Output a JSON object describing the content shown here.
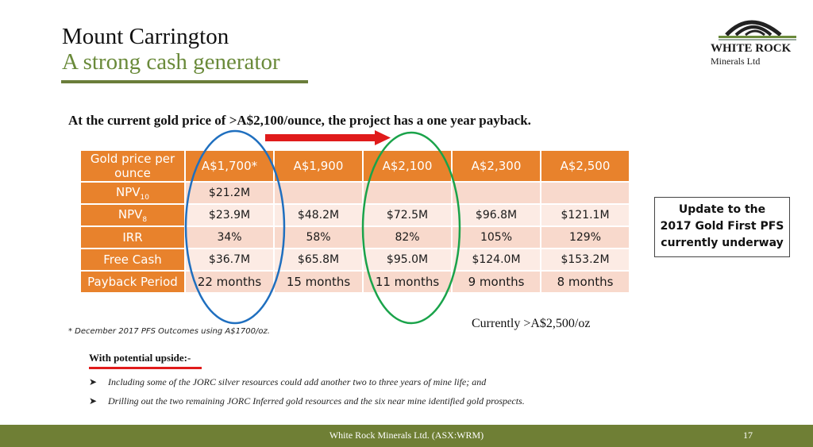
{
  "slide": {
    "title": "Mount Carrington",
    "subtitle": "A strong cash generator",
    "headline": "At the current gold price of >A$2,100/ounce, the project has a one year payback.",
    "footnote": "*  December 2017 PFS Outcomes using A$1700/oz.",
    "currently": "Currently >A$2,500/oz",
    "update_lines": [
      "Update to the",
      "2017 Gold First PFS",
      "currently underway"
    ]
  },
  "logo": {
    "name": "WHITE ROCK",
    "sub": "Minerals Ltd"
  },
  "table": {
    "corner": "Gold price per ounce",
    "columns": [
      "A$1,700*",
      "A$1,900",
      "A$2,100",
      "A$2,300",
      "A$2,500"
    ],
    "rows": [
      {
        "label": "NPV",
        "sub": "10",
        "values": [
          "$21.2M",
          "",
          "",
          "",
          ""
        ]
      },
      {
        "label": "NPV",
        "sub": "8",
        "values": [
          "$23.9M",
          "$48.2M",
          "$72.5M",
          "$96.8M",
          "$121.1M"
        ]
      },
      {
        "label": "IRR",
        "sub": "",
        "values": [
          "34%",
          "58%",
          "82%",
          "105%",
          "129%"
        ]
      },
      {
        "label": "Free Cash",
        "sub": "",
        "values": [
          "$36.7M",
          "$65.8M",
          "$95.0M",
          "$124.0M",
          "$153.2M"
        ]
      },
      {
        "label": "Payback Period",
        "sub": "",
        "values": [
          "22 months",
          "15 months",
          "11 months",
          "9 months",
          "8 months"
        ]
      }
    ]
  },
  "upside": {
    "heading": "With potential upside:-",
    "bullets": [
      "Including some of the JORC silver resources could add another two to three years of mine life; and",
      "Drilling out the two remaining JORC Inferred gold resources and the six near mine identified gold prospects."
    ]
  },
  "footer": {
    "text": "White Rock Minerals Ltd. (ASX:WRM)",
    "page": "17"
  },
  "colors": {
    "accent_green": "#6a8a3a",
    "footer_green": "#6f7f35",
    "table_orange": "#e8822c",
    "highlight_blue": "#1f6fbf",
    "highlight_green": "#1aa34a",
    "arrow_red": "#e01b1b"
  }
}
